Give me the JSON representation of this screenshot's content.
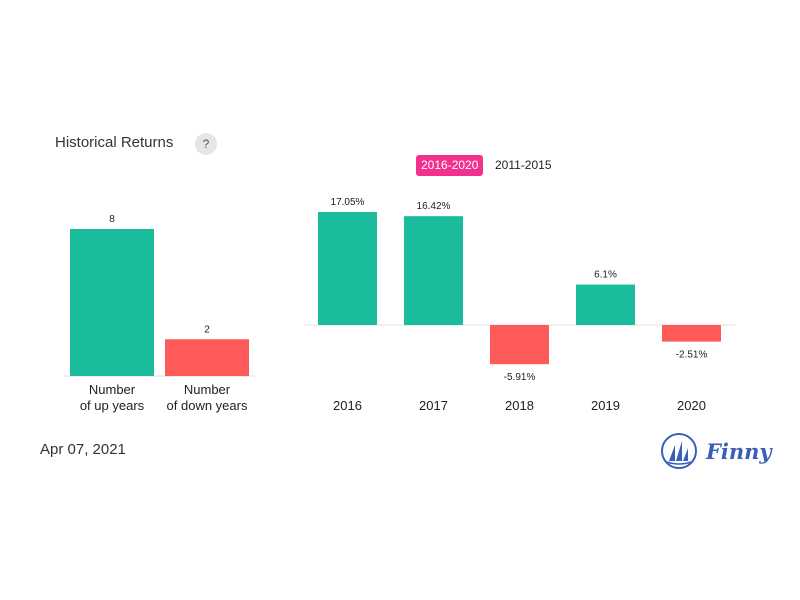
{
  "header": {
    "title": "Historical Returns",
    "help_label": "?"
  },
  "tabs": [
    {
      "label": "2016-2020",
      "active": true
    },
    {
      "label": "2011-2015",
      "active": false
    }
  ],
  "footer": {
    "date": "Apr 07, 2021",
    "brand": "Finny"
  },
  "colors": {
    "positive": "#1abc9c",
    "negative": "#ff5a5a",
    "active_tab": "#f2318e",
    "brand": "#3a5fb8"
  },
  "icons": {
    "logo": "sailboat-logo-icon",
    "help": "question-icon"
  },
  "chart_data": [
    {
      "type": "bar",
      "categories": [
        [
          "Number",
          "of up years"
        ],
        [
          "Number",
          "of down years"
        ]
      ],
      "values": [
        8,
        2
      ],
      "value_labels": [
        "8",
        "2"
      ],
      "ylim": [
        0,
        8
      ]
    },
    {
      "type": "bar",
      "categories": [
        "2016",
        "2017",
        "2018",
        "2019",
        "2020"
      ],
      "values": [
        17.05,
        16.42,
        -5.91,
        6.1,
        -2.51
      ],
      "value_labels": [
        "17.05%",
        "16.42%",
        "-5.91%",
        "6.1%",
        "-2.51%"
      ],
      "ylim": [
        -5.91,
        17.05
      ]
    }
  ]
}
